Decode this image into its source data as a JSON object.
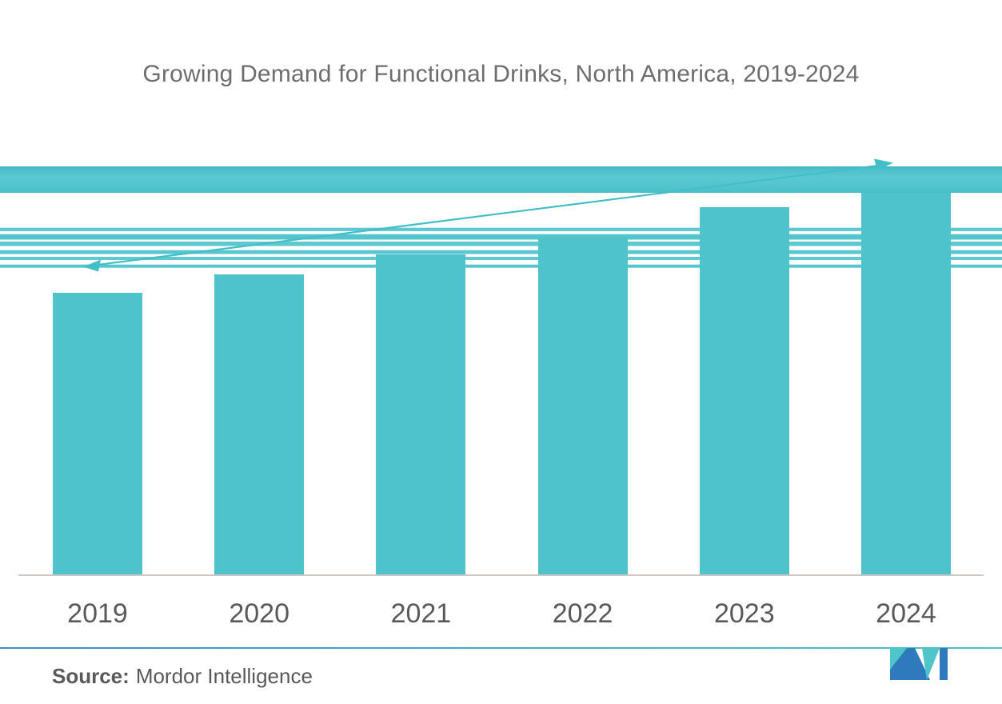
{
  "title": "Growing Demand for Functional Drinks, North America, 2019-2024",
  "source": {
    "prefix": "Source:",
    "name": "Mordor Intelligence"
  },
  "chart_data": {
    "type": "bar",
    "title": "Growing Demand for Functional Drinks, North America, 2019-2024",
    "categories": [
      "2019",
      "2020",
      "2021",
      "2022",
      "2023",
      "2024"
    ],
    "values": [
      70,
      74.6,
      79.6,
      83.7,
      91.3,
      100
    ],
    "units": "relative index (2024 = 100); y-axis values not shown in chart",
    "xlabel": "",
    "ylabel": "",
    "ylim": [
      0,
      105
    ],
    "grid": false,
    "legend": false,
    "annotations": [
      "upward double-headed trend arrow spanning 2019 to 2024",
      "decorative teal horizontal band and stripes across upper chart area"
    ]
  },
  "colors": {
    "teal": "#4FC3CB",
    "band-teal-dark": "#3CB6C1",
    "band-teal-light": "#5BC8CF",
    "arrow-teal": "#41BEC8",
    "line-blue": "#3F8FC5",
    "logo-teal": "#4EC5C8",
    "logo-blue": "#2F79BD",
    "title-gray": "#6C6D6F",
    "label-gray": "#58595B",
    "axis-gray": "#CBC8C6"
  }
}
